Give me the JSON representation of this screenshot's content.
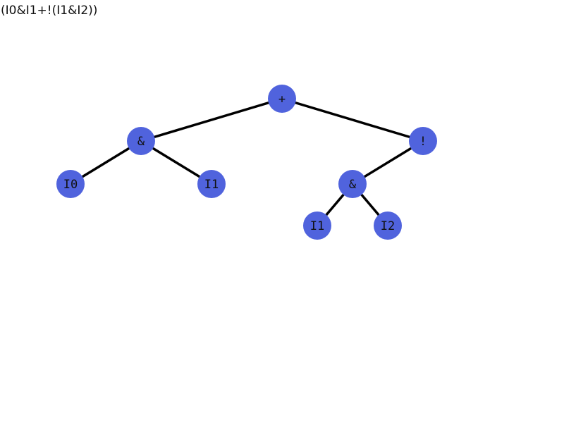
{
  "expression": "(I0&I1+!(I1&I2))",
  "node_color": "#5063dd",
  "edge_color": "#000000",
  "nodes": [
    {
      "id": "root-or",
      "label": "+"
    },
    {
      "id": "and-left",
      "label": "&"
    },
    {
      "id": "not",
      "label": "!"
    },
    {
      "id": "leaf-i0",
      "label": "I0"
    },
    {
      "id": "leaf-i1-left",
      "label": "I1"
    },
    {
      "id": "and-right",
      "label": "&"
    },
    {
      "id": "leaf-i1-right",
      "label": "I1"
    },
    {
      "id": "leaf-i2",
      "label": "I2"
    }
  ],
  "edges": [
    {
      "from": "root-or",
      "to": "and-left"
    },
    {
      "from": "root-or",
      "to": "not"
    },
    {
      "from": "and-left",
      "to": "leaf-i0"
    },
    {
      "from": "and-left",
      "to": "leaf-i1-left"
    },
    {
      "from": "not",
      "to": "and-right"
    },
    {
      "from": "and-right",
      "to": "leaf-i1-right"
    },
    {
      "from": "and-right",
      "to": "leaf-i2"
    }
  ]
}
